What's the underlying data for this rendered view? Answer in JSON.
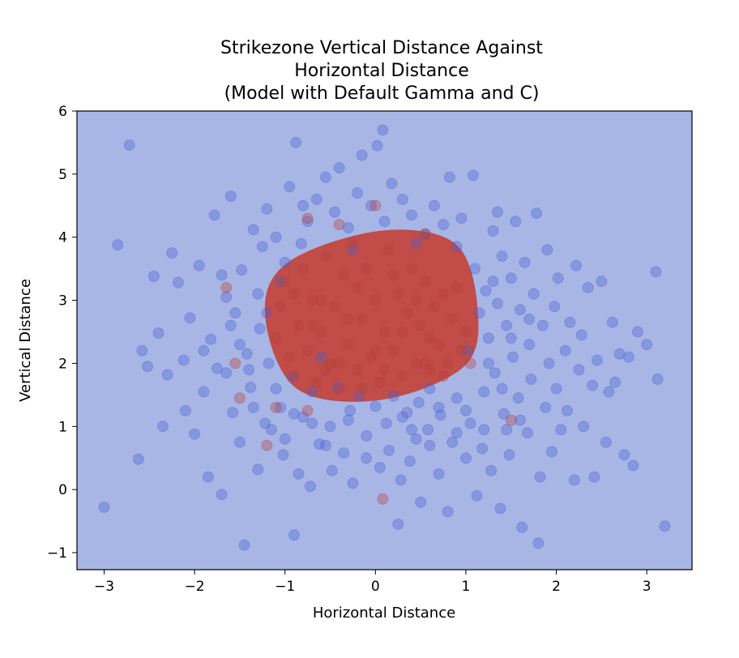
{
  "chart_data": {
    "type": "scatter",
    "title_lines": [
      "Strikezone Vertical Distance Against",
      "Horizontal Distance",
      "(Model with Default Gamma and C)"
    ],
    "xlabel": "Horizontal Distance",
    "ylabel": "Vertical Distance",
    "xlim": [
      -3.3,
      3.5
    ],
    "ylim": [
      -1.27,
      6.0
    ],
    "x_ticks": [
      -3,
      -2,
      -1,
      0,
      1,
      2,
      3
    ],
    "x_tick_labels": [
      "−3",
      "−2",
      "−1",
      "0",
      "1",
      "2",
      "3"
    ],
    "y_ticks": [
      -1,
      0,
      1,
      2,
      3,
      4,
      5,
      6
    ],
    "y_tick_labels": [
      "−1",
      "0",
      "1",
      "2",
      "3",
      "4",
      "5",
      "6"
    ],
    "grid": false,
    "colors": {
      "background_region": "#a8b6e6",
      "decision_region": "#c2473f",
      "ball_points": "#4b5fd0",
      "strike_points": "#b84038"
    },
    "decision_region": {
      "label": "strike",
      "approx_shape": "rounded region",
      "x_range": [
        -1.22,
        1.13
      ],
      "y_range": [
        1.42,
        4.1
      ]
    },
    "series": [
      {
        "class": "ball",
        "values": [
          [
            -3.0,
            -0.28
          ],
          [
            -2.85,
            3.88
          ],
          [
            -2.72,
            5.46
          ],
          [
            -2.62,
            0.48
          ],
          [
            -2.58,
            2.2
          ],
          [
            -2.52,
            1.95
          ],
          [
            -2.45,
            3.38
          ],
          [
            -2.4,
            2.48
          ],
          [
            -2.35,
            1.0
          ],
          [
            -2.3,
            1.82
          ],
          [
            -2.25,
            3.75
          ],
          [
            -2.18,
            3.28
          ],
          [
            -2.12,
            2.05
          ],
          [
            -2.1,
            1.25
          ],
          [
            -2.05,
            2.72
          ],
          [
            -2.0,
            0.88
          ],
          [
            -1.95,
            3.55
          ],
          [
            -1.9,
            1.55
          ],
          [
            -1.85,
            0.2
          ],
          [
            -1.82,
            2.38
          ],
          [
            -1.78,
            4.35
          ],
          [
            -1.75,
            1.92
          ],
          [
            -1.7,
            -0.08
          ],
          [
            -1.65,
            3.05
          ],
          [
            -1.6,
            4.65
          ],
          [
            -1.58,
            1.22
          ],
          [
            -1.55,
            2.8
          ],
          [
            -1.5,
            0.75
          ],
          [
            -1.48,
            3.48
          ],
          [
            -1.45,
            -0.88
          ],
          [
            -1.42,
            2.15
          ],
          [
            -1.38,
            1.62
          ],
          [
            -1.35,
            4.12
          ],
          [
            -1.3,
            0.32
          ],
          [
            -1.28,
            2.55
          ],
          [
            -1.25,
            3.85
          ],
          [
            -1.22,
            1.05
          ],
          [
            -1.2,
            4.45
          ],
          [
            -1.18,
            2.0
          ],
          [
            -1.15,
            0.95
          ],
          [
            -1.1,
            4.0
          ],
          [
            -1.05,
            1.3
          ],
          [
            -1.02,
            0.55
          ],
          [
            -1.0,
            3.6
          ],
          [
            -0.95,
            4.8
          ],
          [
            -0.92,
            1.78
          ],
          [
            -0.9,
            -0.72
          ],
          [
            -0.88,
            5.5
          ],
          [
            -0.85,
            0.25
          ],
          [
            -0.82,
            3.9
          ],
          [
            -0.8,
            1.15
          ],
          [
            -0.75,
            4.25
          ],
          [
            -0.72,
            0.05
          ],
          [
            -0.7,
            1.55
          ],
          [
            -0.65,
            4.6
          ],
          [
            -0.62,
            0.72
          ],
          [
            -0.6,
            2.1
          ],
          [
            -0.55,
            4.95
          ],
          [
            -0.5,
            1.0
          ],
          [
            -0.48,
            0.3
          ],
          [
            -0.45,
            4.4
          ],
          [
            -0.42,
            1.62
          ],
          [
            -0.4,
            5.1
          ],
          [
            -0.35,
            0.58
          ],
          [
            -0.3,
            4.15
          ],
          [
            -0.28,
            1.25
          ],
          [
            -0.25,
            0.1
          ],
          [
            -0.2,
            4.7
          ],
          [
            -0.18,
            1.48
          ],
          [
            -0.15,
            5.3
          ],
          [
            -0.1,
            0.85
          ],
          [
            -0.05,
            4.5
          ],
          [
            0.0,
            1.32
          ],
          [
            0.02,
            5.45
          ],
          [
            0.05,
            0.35
          ],
          [
            0.08,
            5.7
          ],
          [
            0.1,
            4.25
          ],
          [
            0.12,
            1.05
          ],
          [
            0.15,
            0.62
          ],
          [
            0.18,
            4.85
          ],
          [
            0.2,
            1.48
          ],
          [
            0.25,
            -0.55
          ],
          [
            0.28,
            0.15
          ],
          [
            0.3,
            4.6
          ],
          [
            0.35,
            1.22
          ],
          [
            0.38,
            0.45
          ],
          [
            0.4,
            4.35
          ],
          [
            0.45,
            0.8
          ],
          [
            0.48,
            1.38
          ],
          [
            0.5,
            -0.2
          ],
          [
            0.55,
            4.05
          ],
          [
            0.58,
            0.95
          ],
          [
            0.6,
            1.6
          ],
          [
            0.65,
            4.5
          ],
          [
            0.7,
            0.25
          ],
          [
            0.72,
            1.18
          ],
          [
            0.75,
            4.2
          ],
          [
            0.8,
            -0.35
          ],
          [
            0.82,
            4.95
          ],
          [
            0.85,
            0.75
          ],
          [
            0.9,
            1.45
          ],
          [
            0.95,
            4.3
          ],
          [
            1.0,
            0.5
          ],
          [
            1.02,
            2.2
          ],
          [
            1.05,
            1.05
          ],
          [
            1.08,
            4.98
          ],
          [
            1.1,
            3.5
          ],
          [
            1.12,
            -0.1
          ],
          [
            1.15,
            2.8
          ],
          [
            1.18,
            0.65
          ],
          [
            1.2,
            1.55
          ],
          [
            1.22,
            3.15
          ],
          [
            1.25,
            2.4
          ],
          [
            1.28,
            0.3
          ],
          [
            1.3,
            4.1
          ],
          [
            1.32,
            1.85
          ],
          [
            1.35,
            2.95
          ],
          [
            1.38,
            -0.3
          ],
          [
            1.4,
            3.7
          ],
          [
            1.42,
            1.2
          ],
          [
            1.45,
            2.6
          ],
          [
            1.48,
            0.55
          ],
          [
            1.5,
            3.35
          ],
          [
            1.52,
            2.1
          ],
          [
            1.55,
            4.25
          ],
          [
            1.58,
            1.45
          ],
          [
            1.6,
            2.85
          ],
          [
            1.62,
            -0.6
          ],
          [
            1.65,
            3.6
          ],
          [
            1.68,
            0.9
          ],
          [
            1.7,
            2.3
          ],
          [
            1.72,
            1.75
          ],
          [
            1.75,
            3.1
          ],
          [
            1.78,
            4.38
          ],
          [
            1.8,
            -0.85
          ],
          [
            1.82,
            0.2
          ],
          [
            1.85,
            2.6
          ],
          [
            1.88,
            1.3
          ],
          [
            1.9,
            3.8
          ],
          [
            1.92,
            2.0
          ],
          [
            1.95,
            0.6
          ],
          [
            1.98,
            2.9
          ],
          [
            2.0,
            1.6
          ],
          [
            2.02,
            3.35
          ],
          [
            2.05,
            0.95
          ],
          [
            2.1,
            2.2
          ],
          [
            2.12,
            1.25
          ],
          [
            2.15,
            2.65
          ],
          [
            2.2,
            0.15
          ],
          [
            2.22,
            3.55
          ],
          [
            2.25,
            1.9
          ],
          [
            2.28,
            2.45
          ],
          [
            2.3,
            1.0
          ],
          [
            2.35,
            3.2
          ],
          [
            2.4,
            1.65
          ],
          [
            2.42,
            0.2
          ],
          [
            2.45,
            2.05
          ],
          [
            2.5,
            3.3
          ],
          [
            2.55,
            0.75
          ],
          [
            2.58,
            1.55
          ],
          [
            2.62,
            2.65
          ],
          [
            2.65,
            1.7
          ],
          [
            2.7,
            2.15
          ],
          [
            2.75,
            0.55
          ],
          [
            2.8,
            2.1
          ],
          [
            2.85,
            0.38
          ],
          [
            2.9,
            2.5
          ],
          [
            3.0,
            2.3
          ],
          [
            3.1,
            3.45
          ],
          [
            3.12,
            1.75
          ],
          [
            3.2,
            -0.58
          ],
          [
            -1.9,
            2.2
          ],
          [
            -1.6,
            2.6
          ],
          [
            -1.4,
            1.9
          ],
          [
            -1.3,
            3.1
          ],
          [
            -1.2,
            2.8
          ],
          [
            -1.1,
            1.6
          ],
          [
            -0.9,
            1.2
          ],
          [
            -0.7,
            1.05
          ],
          [
            -0.3,
            1.1
          ],
          [
            0.3,
            1.15
          ],
          [
            0.7,
            1.3
          ],
          [
            1.0,
            1.25
          ],
          [
            1.25,
            2.0
          ],
          [
            1.3,
            3.3
          ],
          [
            1.4,
            1.6
          ],
          [
            1.5,
            2.4
          ],
          [
            1.6,
            1.1
          ],
          [
            1.7,
            2.7
          ],
          [
            1.45,
            0.95
          ],
          [
            1.2,
            0.95
          ],
          [
            0.9,
            0.9
          ],
          [
            0.6,
            0.7
          ],
          [
            0.4,
            0.95
          ],
          [
            -0.1,
            0.5
          ],
          [
            -0.55,
            0.7
          ],
          [
            -1.0,
            0.8
          ],
          [
            -1.35,
            1.3
          ],
          [
            -1.5,
            2.3
          ],
          [
            -1.65,
            1.85
          ],
          [
            -1.7,
            3.4
          ],
          [
            1.35,
            4.4
          ],
          [
            -0.25,
            3.8
          ],
          [
            0.45,
            3.9
          ],
          [
            -0.8,
            4.5
          ],
          [
            0.9,
            3.85
          ],
          [
            -1.05,
            3.3
          ]
        ]
      },
      {
        "class": "strike",
        "values": [
          [
            -1.1,
            2.4
          ],
          [
            -1.05,
            2.9
          ],
          [
            -1.0,
            3.3
          ],
          [
            -0.95,
            2.1
          ],
          [
            -0.9,
            1.8
          ],
          [
            -0.85,
            2.6
          ],
          [
            -0.8,
            3.5
          ],
          [
            -0.75,
            2.2
          ],
          [
            -0.7,
            3.0
          ],
          [
            -0.65,
            1.7
          ],
          [
            -0.6,
            2.5
          ],
          [
            -0.55,
            3.7
          ],
          [
            -0.5,
            2.0
          ],
          [
            -0.45,
            2.9
          ],
          [
            -0.4,
            1.6
          ],
          [
            -0.35,
            3.4
          ],
          [
            -0.3,
            2.3
          ],
          [
            -0.25,
            3.9
          ],
          [
            -0.2,
            1.9
          ],
          [
            -0.15,
            2.7
          ],
          [
            -0.1,
            3.5
          ],
          [
            -0.05,
            2.1
          ],
          [
            0.0,
            3.0
          ],
          [
            0.05,
            1.7
          ],
          [
            0.1,
            2.5
          ],
          [
            0.15,
            3.8
          ],
          [
            0.2,
            2.2
          ],
          [
            0.25,
            3.1
          ],
          [
            0.3,
            1.8
          ],
          [
            0.35,
            2.8
          ],
          [
            0.4,
            3.5
          ],
          [
            0.45,
            2.0
          ],
          [
            0.5,
            2.6
          ],
          [
            0.55,
            3.3
          ],
          [
            0.6,
            1.9
          ],
          [
            0.65,
            2.9
          ],
          [
            0.7,
            2.3
          ],
          [
            0.75,
            3.1
          ],
          [
            0.8,
            2.0
          ],
          [
            0.85,
            2.7
          ],
          [
            0.9,
            3.2
          ],
          [
            0.95,
            2.2
          ],
          [
            1.0,
            2.5
          ],
          [
            1.05,
            2.0
          ],
          [
            -0.9,
            3.1
          ],
          [
            -0.6,
            3.0
          ],
          [
            -0.3,
            2.7
          ],
          [
            0.0,
            2.2
          ],
          [
            0.3,
            2.5
          ],
          [
            0.6,
            2.4
          ],
          [
            -0.7,
            2.6
          ],
          [
            -0.2,
            3.2
          ],
          [
            0.2,
            3.4
          ],
          [
            0.55,
            2.0
          ],
          [
            -0.4,
            2.0
          ],
          [
            0.1,
            1.9
          ],
          [
            0.45,
            3.0
          ],
          [
            -0.55,
            1.9
          ],
          [
            0.75,
            1.8
          ],
          [
            -0.15,
            1.6
          ],
          [
            -1.65,
            3.2
          ],
          [
            -1.55,
            2.0
          ],
          [
            -1.5,
            1.45
          ],
          [
            -1.1,
            1.3
          ],
          [
            -0.75,
            1.25
          ],
          [
            0.0,
            4.5
          ],
          [
            0.55,
            4.05
          ],
          [
            -0.75,
            4.3
          ],
          [
            -0.4,
            4.2
          ],
          [
            0.08,
            -0.15
          ],
          [
            1.5,
            1.1
          ],
          [
            -1.2,
            0.7
          ]
        ]
      }
    ]
  }
}
